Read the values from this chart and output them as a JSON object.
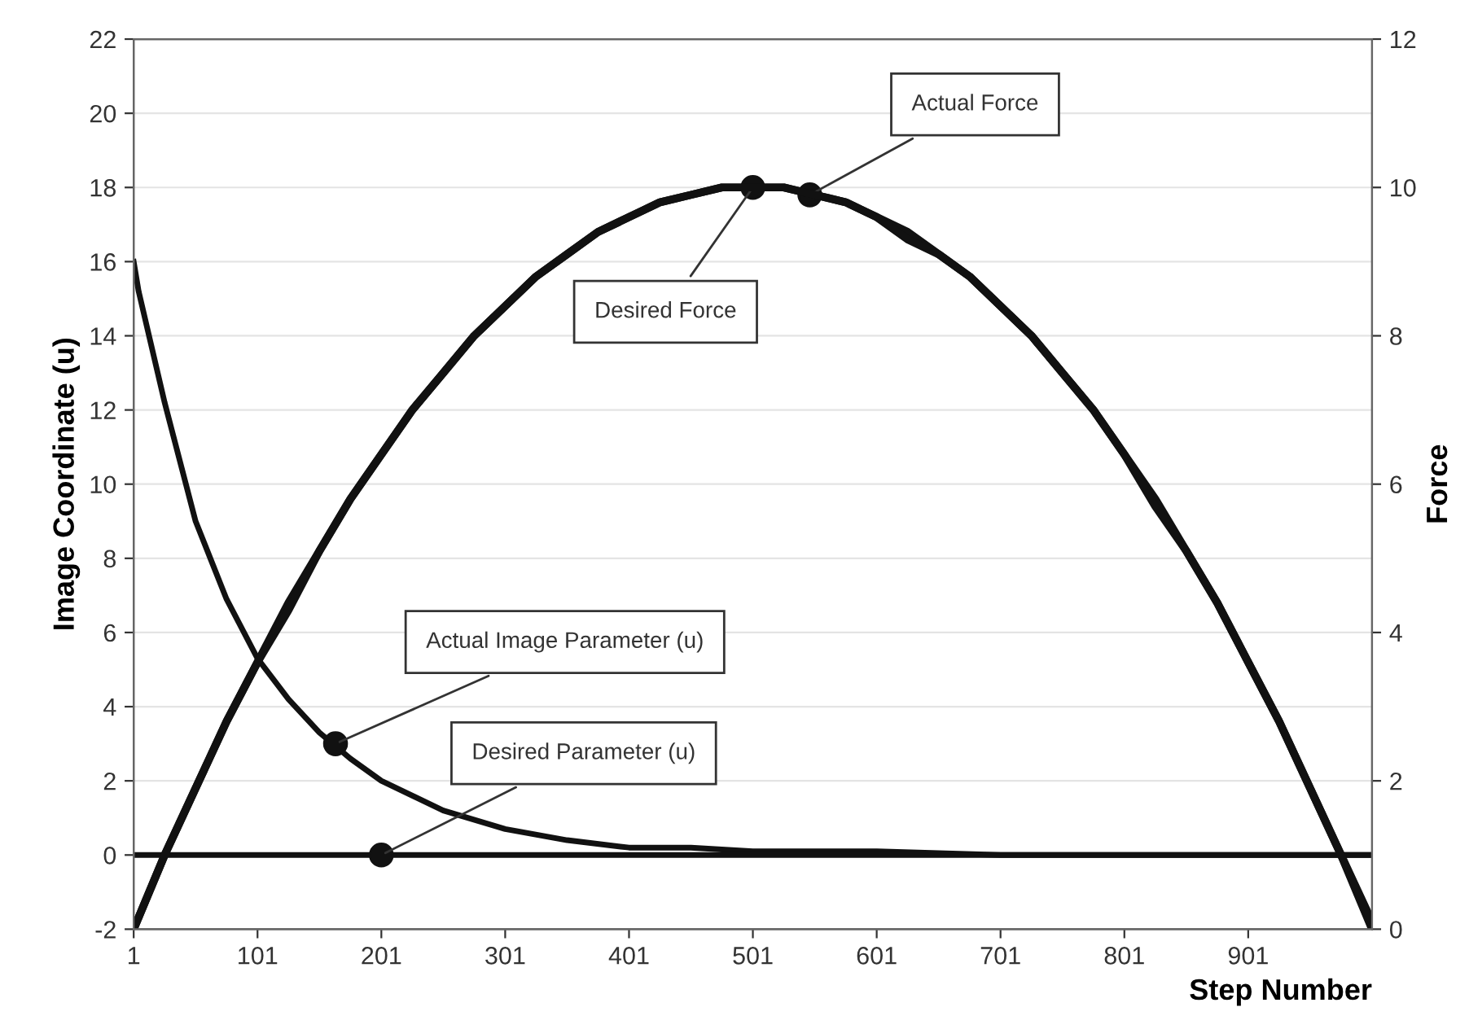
{
  "chart_data": {
    "type": "line",
    "xlabel": "Step Number",
    "ylabel": "Image Coordinate (u)",
    "y2label": "Force",
    "xlim": [
      1,
      1001
    ],
    "xticks": [
      1,
      101,
      201,
      301,
      401,
      501,
      601,
      701,
      801,
      901
    ],
    "ylim": [
      -2,
      22
    ],
    "yticks": [
      -2,
      0,
      2,
      4,
      6,
      8,
      10,
      12,
      14,
      16,
      18,
      20,
      22
    ],
    "y2lim": [
      0,
      12
    ],
    "y2ticks": [
      0,
      2,
      4,
      6,
      8,
      10,
      12
    ],
    "grid": "y",
    "marker": "none",
    "line_style": "solid",
    "series": [
      {
        "color": "#111111",
        "x": [
          1,
          5,
          26,
          51,
          76,
          101,
          126,
          151,
          176,
          201,
          251,
          301,
          351,
          401,
          451,
          501,
          601,
          701,
          801,
          901,
          1001
        ],
        "values": [
          16,
          15.2,
          12.2,
          9.0,
          6.9,
          5.3,
          4.2,
          3.3,
          2.6,
          2.0,
          1.2,
          0.7,
          0.4,
          0.2,
          0.2,
          0.1,
          0.1,
          0.0,
          0.0,
          0.0,
          0.0
        ]
      },
      {
        "color": "#111111",
        "x": [
          1,
          1001
        ],
        "values": [
          0,
          0
        ]
      },
      {
        "color": "#111111",
        "axis": "y2",
        "x": [
          1,
          26,
          51,
          76,
          101,
          126,
          151,
          176,
          201,
          226,
          251,
          276,
          301,
          326,
          351,
          376,
          401,
          426,
          451,
          476,
          501,
          526,
          551,
          576,
          601,
          626,
          651,
          676,
          701,
          726,
          751,
          776,
          801,
          826,
          851,
          876,
          901,
          926,
          951,
          976,
          1001
        ],
        "values": [
          0,
          1.0,
          1.9,
          2.8,
          3.6,
          4.4,
          5.1,
          5.8,
          6.4,
          7.0,
          7.5,
          8.0,
          8.4,
          8.8,
          9.1,
          9.4,
          9.6,
          9.8,
          9.9,
          10.0,
          10.0,
          10.0,
          9.9,
          9.8,
          9.6,
          9.4,
          9.1,
          8.8,
          8.4,
          8.0,
          7.5,
          7.0,
          6.4,
          5.8,
          5.1,
          4.4,
          3.6,
          2.8,
          1.9,
          1.0,
          0
        ]
      },
      {
        "color": "#111111",
        "axis": "y2",
        "x": [
          1,
          26,
          51,
          76,
          101,
          126,
          151,
          176,
          201,
          226,
          251,
          276,
          301,
          326,
          351,
          376,
          401,
          426,
          451,
          476,
          501,
          526,
          551,
          576,
          601,
          626,
          651,
          676,
          701,
          726,
          751,
          776,
          801,
          826,
          851,
          876,
          901,
          926,
          951,
          976,
          1001
        ],
        "values": [
          0,
          1.0,
          1.9,
          2.8,
          3.6,
          4.3,
          5.1,
          5.8,
          6.4,
          7.0,
          7.5,
          8.0,
          8.4,
          8.8,
          9.1,
          9.4,
          9.6,
          9.8,
          9.9,
          10.0,
          10.0,
          10.0,
          9.9,
          9.8,
          9.6,
          9.3,
          9.1,
          8.8,
          8.4,
          8.0,
          7.5,
          7.0,
          6.4,
          5.7,
          5.1,
          4.4,
          3.6,
          2.8,
          1.9,
          1.0,
          0.1
        ]
      }
    ],
    "annotations": [
      {
        "text": "Actual Image Parameter (u)",
        "x": 164,
        "y": 3
      },
      {
        "text": "Desired Parameter (u)",
        "x": 201,
        "y": 0
      },
      {
        "text": "Desired Force",
        "x": 501,
        "y": 18
      },
      {
        "text": "Actual Force",
        "x": 547,
        "y": 17.8
      }
    ]
  }
}
